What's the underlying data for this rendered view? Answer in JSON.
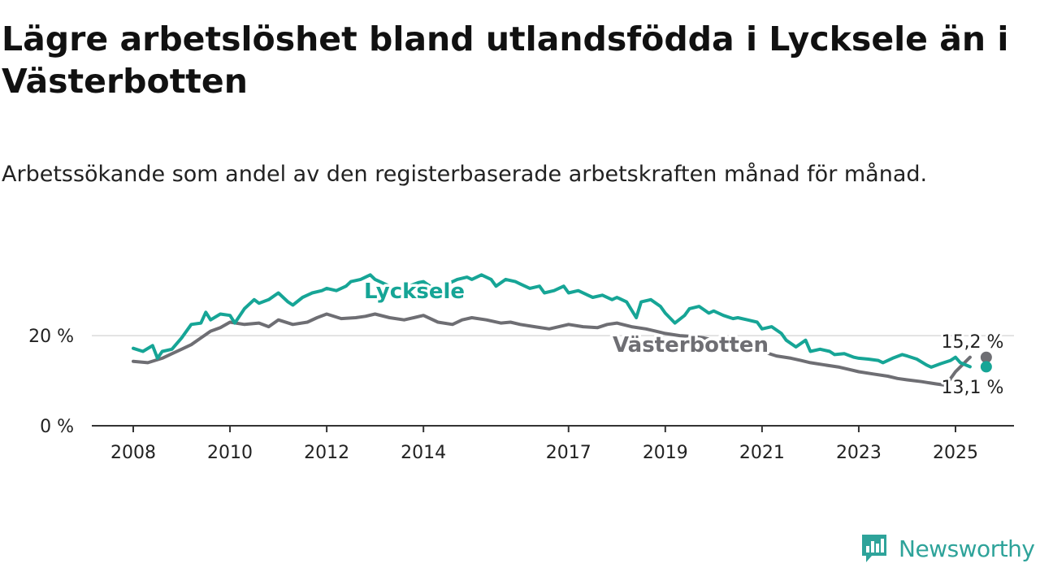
{
  "header": {
    "title": "Lägre arbetslöshet bland utlandsfödda i Lycksele än i Västerbotten",
    "subtitle": "Arbetssökande som andel av den registerbaserade arbetskraften månad för månad."
  },
  "brand": {
    "name": "Newsworthy",
    "icon": "bar-chart-icon",
    "color": "#2ea39a"
  },
  "chart_data": {
    "type": "line",
    "xlim": [
      2008,
      2025.9
    ],
    "ylim": [
      0,
      35
    ],
    "x_ticks": [
      {
        "value": 2008,
        "label": "2008"
      },
      {
        "value": 2010,
        "label": "2010"
      },
      {
        "value": 2012,
        "label": "2012"
      },
      {
        "value": 2014,
        "label": "2014"
      },
      {
        "value": 2017,
        "label": "2017"
      },
      {
        "value": 2019,
        "label": "2019"
      },
      {
        "value": 2021,
        "label": "2021"
      },
      {
        "value": 2023,
        "label": "2023"
      },
      {
        "value": 2025,
        "label": "2025"
      }
    ],
    "y_ticks": [
      {
        "value": 0,
        "label": "0 %"
      },
      {
        "value": 20,
        "label": "20 %"
      }
    ],
    "grid": "horizontal",
    "series": [
      {
        "name": "Lycksele",
        "color": "#16a596",
        "end_label": "13,1 %",
        "x": [
          2008.0,
          2008.2,
          2008.4,
          2008.5,
          2008.6,
          2008.8,
          2009.0,
          2009.2,
          2009.4,
          2009.5,
          2009.6,
          2009.8,
          2010.0,
          2010.1,
          2010.3,
          2010.5,
          2010.6,
          2010.8,
          2011.0,
          2011.2,
          2011.3,
          2011.5,
          2011.7,
          2011.9,
          2012.0,
          2012.2,
          2012.4,
          2012.5,
          2012.7,
          2012.9,
          2013.0,
          2013.2,
          2013.4,
          2013.5,
          2013.7,
          2013.9,
          2014.0,
          2014.2,
          2014.4,
          2014.5,
          2014.7,
          2014.9,
          2015.0,
          2015.2,
          2015.4,
          2015.5,
          2015.7,
          2015.9,
          2016.0,
          2016.2,
          2016.4,
          2016.5,
          2016.7,
          2016.9,
          2017.0,
          2017.2,
          2017.4,
          2017.5,
          2017.7,
          2017.9,
          2018.0,
          2018.2,
          2018.4,
          2018.5,
          2018.7,
          2018.9,
          2019.0,
          2019.2,
          2019.4,
          2019.5,
          2019.7,
          2019.9,
          2020.0,
          2020.2,
          2020.4,
          2020.5,
          2020.7,
          2020.9,
          2021.0,
          2021.2,
          2021.4,
          2021.5,
          2021.7,
          2021.9,
          2022.0,
          2022.2,
          2022.4,
          2022.5,
          2022.7,
          2022.9,
          2023.0,
          2023.2,
          2023.4,
          2023.5,
          2023.7,
          2023.9,
          2024.0,
          2024.2,
          2024.4,
          2024.5,
          2024.7,
          2024.9,
          2025.0,
          2025.1,
          2025.3
        ],
        "y": [
          17.2,
          16.5,
          17.8,
          15.0,
          16.5,
          17.0,
          19.5,
          22.5,
          22.8,
          25.2,
          23.5,
          24.8,
          24.5,
          22.8,
          26.0,
          28.0,
          27.2,
          28.0,
          29.5,
          27.5,
          26.8,
          28.5,
          29.5,
          30.0,
          30.5,
          30.0,
          31.0,
          32.0,
          32.5,
          33.5,
          32.5,
          31.5,
          30.5,
          30.0,
          31.0,
          31.8,
          32.0,
          30.5,
          30.0,
          31.5,
          32.5,
          33.0,
          32.5,
          33.5,
          32.5,
          31.0,
          32.5,
          32.0,
          31.5,
          30.5,
          31.0,
          29.5,
          30.0,
          31.0,
          29.5,
          30.0,
          29.0,
          28.5,
          29.0,
          28.0,
          28.5,
          27.5,
          24.0,
          27.5,
          28.0,
          26.5,
          25.0,
          22.8,
          24.5,
          26.0,
          26.5,
          25.0,
          25.5,
          24.5,
          23.8,
          24.0,
          23.5,
          23.0,
          21.5,
          22.0,
          20.5,
          19.0,
          17.5,
          19.0,
          16.5,
          17.0,
          16.5,
          15.8,
          16.0,
          15.2,
          15.0,
          14.8,
          14.5,
          14.0,
          15.0,
          15.8,
          15.5,
          14.8,
          13.5,
          13.0,
          13.8,
          14.5,
          15.2,
          14.0,
          13.1
        ]
      },
      {
        "name": "Västerbotten",
        "color": "#6e6e73",
        "end_label": "15,2 %",
        "x": [
          2008.0,
          2008.3,
          2008.6,
          2008.8,
          2009.0,
          2009.2,
          2009.4,
          2009.6,
          2009.8,
          2010.0,
          2010.3,
          2010.6,
          2010.8,
          2011.0,
          2011.3,
          2011.6,
          2011.8,
          2012.0,
          2012.3,
          2012.6,
          2012.8,
          2013.0,
          2013.3,
          2013.6,
          2013.8,
          2014.0,
          2014.3,
          2014.6,
          2014.8,
          2015.0,
          2015.3,
          2015.6,
          2015.8,
          2016.0,
          2016.3,
          2016.6,
          2016.8,
          2017.0,
          2017.3,
          2017.6,
          2017.8,
          2018.0,
          2018.3,
          2018.6,
          2018.8,
          2019.0,
          2019.3,
          2019.6,
          2019.8,
          2020.0,
          2020.3,
          2020.6,
          2020.8,
          2021.0,
          2021.3,
          2021.6,
          2021.8,
          2022.0,
          2022.3,
          2022.6,
          2022.8,
          2023.0,
          2023.3,
          2023.6,
          2023.8,
          2024.0,
          2024.3,
          2024.6,
          2024.8,
          2025.0,
          2025.3
        ],
        "y": [
          14.3,
          14.0,
          15.0,
          16.0,
          17.0,
          18.0,
          19.5,
          21.0,
          21.8,
          23.0,
          22.5,
          22.8,
          22.0,
          23.5,
          22.5,
          23.0,
          24.0,
          24.8,
          23.8,
          24.0,
          24.3,
          24.8,
          24.0,
          23.5,
          24.0,
          24.5,
          23.0,
          22.5,
          23.5,
          24.0,
          23.5,
          22.8,
          23.0,
          22.5,
          22.0,
          21.5,
          22.0,
          22.5,
          22.0,
          21.8,
          22.5,
          22.8,
          22.0,
          21.5,
          21.0,
          20.5,
          20.0,
          19.8,
          19.5,
          19.0,
          18.5,
          18.0,
          17.5,
          16.5,
          15.5,
          15.0,
          14.5,
          14.0,
          13.5,
          13.0,
          12.5,
          12.0,
          11.5,
          11.0,
          10.5,
          10.2,
          9.8,
          9.3,
          9.0,
          12.0,
          15.2
        ]
      }
    ]
  }
}
